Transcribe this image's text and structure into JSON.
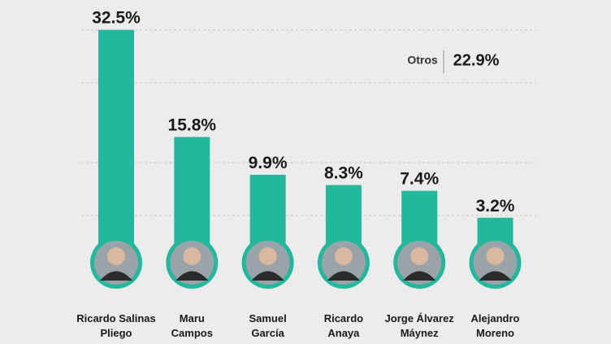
{
  "chart_data": {
    "type": "bar",
    "categories": [
      "Ricardo Salinas\nPliego",
      "Maru\nCampos",
      "Samuel\nGarcía",
      "Ricardo\nAnaya",
      "Jorge Álvarez\nMáynez",
      "Alejandro\nMoreno"
    ],
    "values": [
      32.5,
      15.8,
      9.9,
      8.3,
      7.4,
      3.2
    ],
    "value_labels": [
      "32.5%",
      "15.8%",
      "9.9%",
      "8.3%",
      "7.4%",
      "3.2%"
    ],
    "color": "#22b89b",
    "ylim": [
      0,
      35
    ],
    "annotation": {
      "label": "Otros",
      "value_label": "22.9%"
    }
  }
}
